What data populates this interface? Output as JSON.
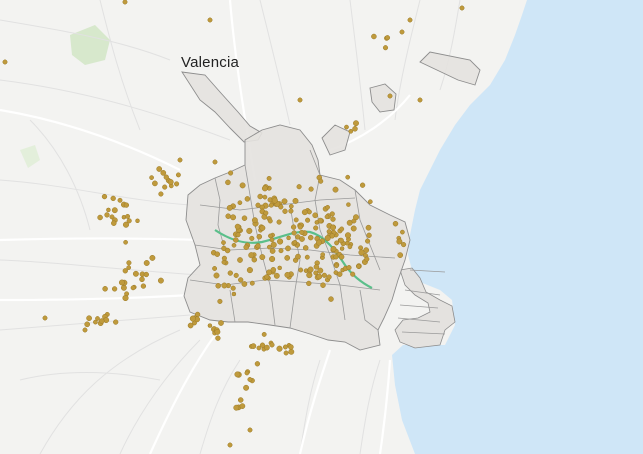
{
  "map": {
    "city_label": "Valencia",
    "colors": {
      "land": "#f3f3f1",
      "sea": "#cfe6f7",
      "district_fill": "#e4e2df",
      "district_stroke": "#8d8d8d",
      "point_fill": "#bf9a3c",
      "point_stroke": "#9b7a27",
      "river_park": "#5bbf8a",
      "road": "#ffffff",
      "minor_road": "#e3e3e3",
      "green_area": "#cfe5c3"
    },
    "point_count": 340
  }
}
